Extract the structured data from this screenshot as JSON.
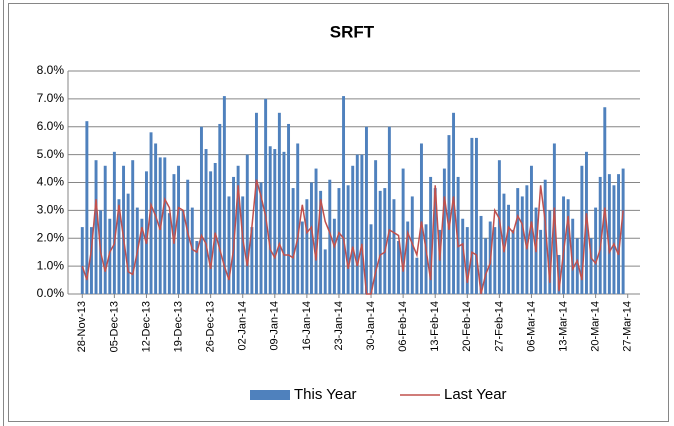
{
  "chart_data": {
    "type": "bar-line",
    "title": "SRFT",
    "categories": [
      "28-Nov-13",
      null,
      null,
      null,
      null,
      null,
      null,
      "05-Dec-13",
      null,
      null,
      null,
      null,
      null,
      null,
      "12-Dec-13",
      null,
      null,
      null,
      null,
      null,
      null,
      "19-Dec-13",
      null,
      null,
      null,
      null,
      null,
      null,
      "26-Dec-13",
      null,
      null,
      null,
      null,
      null,
      null,
      "02-Jan-14",
      null,
      null,
      null,
      null,
      null,
      null,
      "09-Jan-14",
      null,
      null,
      null,
      null,
      null,
      null,
      "16-Jan-14",
      null,
      null,
      null,
      null,
      null,
      null,
      "23-Jan-14",
      null,
      null,
      null,
      null,
      null,
      null,
      "30-Jan-14",
      null,
      null,
      null,
      null,
      null,
      null,
      "06-Feb-14",
      null,
      null,
      null,
      null,
      null,
      null,
      "13-Feb-14",
      null,
      null,
      null,
      null,
      null,
      null,
      "20-Feb-14",
      null,
      null,
      null,
      null,
      null,
      null,
      "27-Feb-14",
      null,
      null,
      null,
      null,
      null,
      null,
      "06-Mar-14",
      null,
      null,
      null,
      null,
      null,
      null,
      "13-Mar-14",
      null,
      null,
      null,
      null,
      null,
      null,
      "20-Mar-14",
      null,
      null,
      null,
      null,
      null,
      null,
      "27-Mar-14"
    ],
    "series": [
      {
        "name": "This Year",
        "kind": "bar",
        "color": "#4f81bd",
        "values": [
          2.4,
          6.2,
          2.4,
          4.8,
          3.0,
          4.6,
          2.7,
          5.1,
          3.4,
          4.6,
          3.6,
          4.8,
          3.1,
          2.7,
          4.4,
          5.8,
          5.4,
          4.9,
          4.9,
          2.9,
          4.3,
          4.6,
          3.0,
          4.1,
          3.1,
          1.9,
          6.0,
          5.2,
          4.4,
          4.7,
          6.1,
          7.1,
          3.5,
          4.2,
          4.6,
          3.5,
          5.0,
          2.4,
          6.5,
          4.0,
          7.0,
          5.3,
          5.2,
          6.5,
          5.1,
          6.1,
          3.8,
          5.4,
          2.6,
          3.4,
          4.0,
          4.5,
          3.7,
          1.6,
          4.1,
          2.7,
          3.8,
          7.1,
          3.9,
          4.6,
          5.0,
          5.0,
          6.0,
          2.5,
          4.8,
          3.7,
          3.8,
          6.0,
          3.4,
          1.9,
          4.5,
          2.6,
          3.5,
          1.3,
          5.4,
          2.5,
          4.2,
          3.8,
          2.3,
          4.5,
          5.7,
          6.5,
          4.2,
          2.7,
          2.4,
          5.6,
          5.6,
          2.8,
          2.0,
          2.6,
          2.4,
          4.8,
          3.6,
          3.2,
          2.3,
          3.8,
          3.5,
          3.9,
          4.6,
          3.1,
          2.3,
          4.1,
          3.0,
          5.4,
          1.4,
          3.5,
          3.4,
          2.7,
          2.0,
          4.6,
          5.1,
          2.0,
          3.1,
          4.2,
          6.7,
          4.3,
          3.9,
          4.3,
          4.5,
          null
        ]
      },
      {
        "name": "Last Year",
        "kind": "line",
        "color": "#c0504d",
        "values": [
          1.0,
          0.5,
          1.6,
          3.4,
          1.5,
          0.8,
          1.5,
          1.8,
          3.2,
          2.0,
          0.8,
          0.7,
          1.5,
          2.4,
          1.8,
          3.2,
          2.8,
          2.3,
          3.4,
          3.1,
          1.8,
          3.1,
          3.0,
          2.2,
          1.6,
          1.5,
          2.1,
          1.8,
          0.9,
          2.2,
          1.6,
          1.0,
          0.5,
          1.6,
          3.9,
          2.0,
          1.0,
          2.4,
          4.1,
          3.5,
          2.8,
          1.6,
          1.3,
          1.8,
          1.4,
          1.4,
          1.3,
          2.0,
          3.2,
          2.2,
          2.4,
          1.2,
          3.4,
          2.6,
          2.2,
          1.7,
          2.2,
          2.0,
          0.9,
          1.7,
          1.0,
          1.8,
          0.0,
          0.0,
          0.8,
          1.4,
          1.5,
          2.3,
          2.2,
          2.1,
          0.8,
          2.2,
          1.8,
          1.4,
          2.6,
          1.6,
          0.5,
          3.9,
          1.2,
          3.5,
          2.3,
          3.5,
          1.7,
          1.8,
          0.4,
          1.5,
          1.4,
          0.0,
          0.7,
          1.1,
          3.0,
          2.7,
          1.5,
          2.4,
          2.2,
          2.8,
          2.5,
          1.6,
          2.6,
          1.5,
          3.9,
          2.6,
          0.4,
          3.1,
          0.1,
          1.5,
          2.8,
          0.9,
          1.2,
          0.5,
          2.9,
          1.3,
          1.1,
          1.6,
          3.1,
          1.5,
          1.8,
          1.4,
          3.0,
          null
        ]
      }
    ],
    "ylim": [
      0,
      8
    ],
    "yticks": [
      {
        "value": 0,
        "label": "0.0%"
      },
      {
        "value": 1,
        "label": "1.0%"
      },
      {
        "value": 2,
        "label": "2.0%"
      },
      {
        "value": 3,
        "label": "3.0%"
      },
      {
        "value": 4,
        "label": "4.0%"
      },
      {
        "value": 5,
        "label": "5.0%"
      },
      {
        "value": 6,
        "label": "6.0%"
      },
      {
        "value": 7,
        "label": "7.0%"
      },
      {
        "value": 8,
        "label": "8.0%"
      }
    ],
    "grid": true,
    "legend": "bottom"
  }
}
